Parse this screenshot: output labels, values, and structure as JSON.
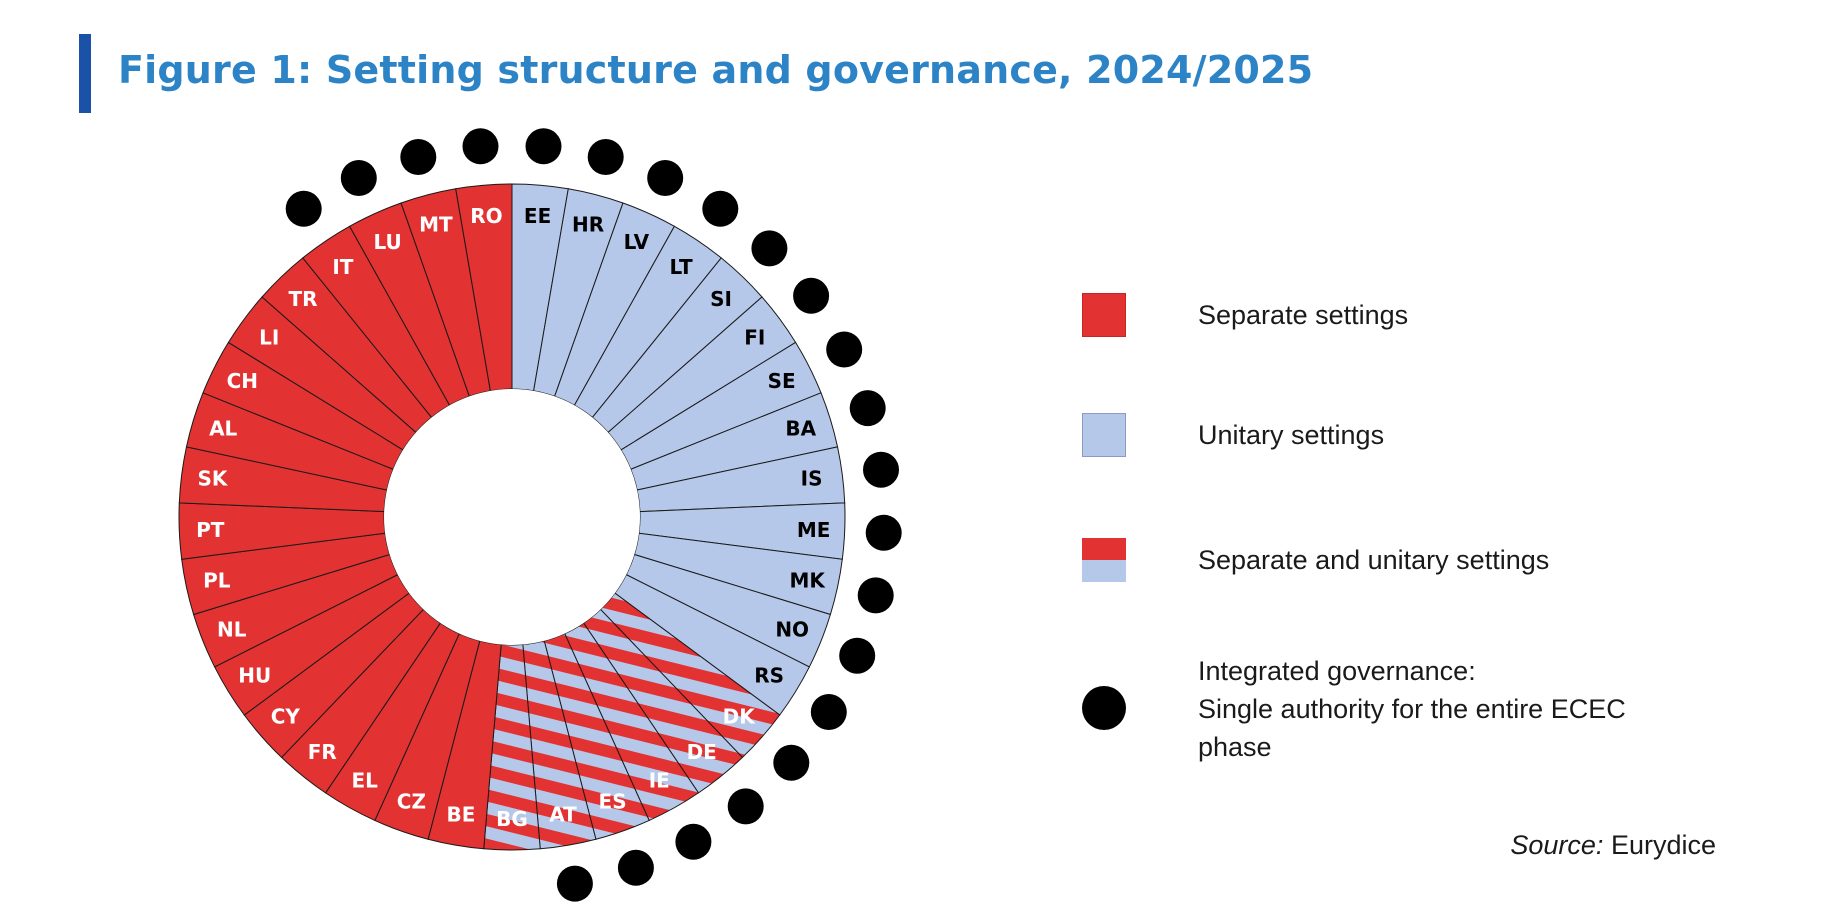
{
  "title": "Figure 1: Setting structure and governance, 2024/2025",
  "colors": {
    "separate": "#e23232",
    "unitary": "#b6c8ea",
    "title": "#2c83c6",
    "title_bar": "#1a52a8",
    "dot": "#000000"
  },
  "legend": {
    "separate": "Separate settings",
    "unitary": "Unitary settings",
    "mixed": "Separate and unitary settings",
    "integrated_line1": "Integrated governance:",
    "integrated_line2": "Single authority for the entire ECEC",
    "integrated_line3": "phase"
  },
  "source": {
    "label": "Source:",
    "value": "Eurydice"
  },
  "chart_data": {
    "type": "pie",
    "order": "clockwise from 12 o'clock",
    "categories": [
      "EE",
      "HR",
      "LV",
      "LT",
      "SI",
      "FI",
      "SE",
      "BA",
      "IS",
      "ME",
      "MK",
      "NO",
      "RS",
      "DK",
      "DE",
      "IE",
      "ES",
      "AT",
      "BG",
      "BE",
      "CZ",
      "EL",
      "FR",
      "CY",
      "HU",
      "NL",
      "PL",
      "PT",
      "SK",
      "AL",
      "CH",
      "LI",
      "TR",
      "IT",
      "LU",
      "MT",
      "RO"
    ],
    "setting": [
      "unitary",
      "unitary",
      "unitary",
      "unitary",
      "unitary",
      "unitary",
      "unitary",
      "unitary",
      "unitary",
      "unitary",
      "unitary",
      "unitary",
      "unitary",
      "mixed",
      "mixed",
      "mixed",
      "mixed",
      "mixed",
      "mixed",
      "separate",
      "separate",
      "separate",
      "separate",
      "separate",
      "separate",
      "separate",
      "separate",
      "separate",
      "separate",
      "separate",
      "separate",
      "separate",
      "separate",
      "separate",
      "separate",
      "separate",
      "separate"
    ],
    "integrated_governance": [
      "EE",
      "HR",
      "LV",
      "LT",
      "SI",
      "FI",
      "SE",
      "BA",
      "IS",
      "ME",
      "MK",
      "NO",
      "RS",
      "DK",
      "DE",
      "IE",
      "ES",
      "AT",
      "IT",
      "LU",
      "MT",
      "RO"
    ],
    "values": [
      1,
      1,
      1,
      1,
      1,
      1,
      1,
      1,
      1,
      1,
      1,
      1,
      1,
      1,
      1,
      1,
      1,
      1,
      1,
      1,
      1,
      1,
      1,
      1,
      1,
      1,
      1,
      1,
      1,
      1,
      1,
      1,
      1,
      1,
      1,
      1,
      1
    ],
    "legend_position": "right"
  }
}
